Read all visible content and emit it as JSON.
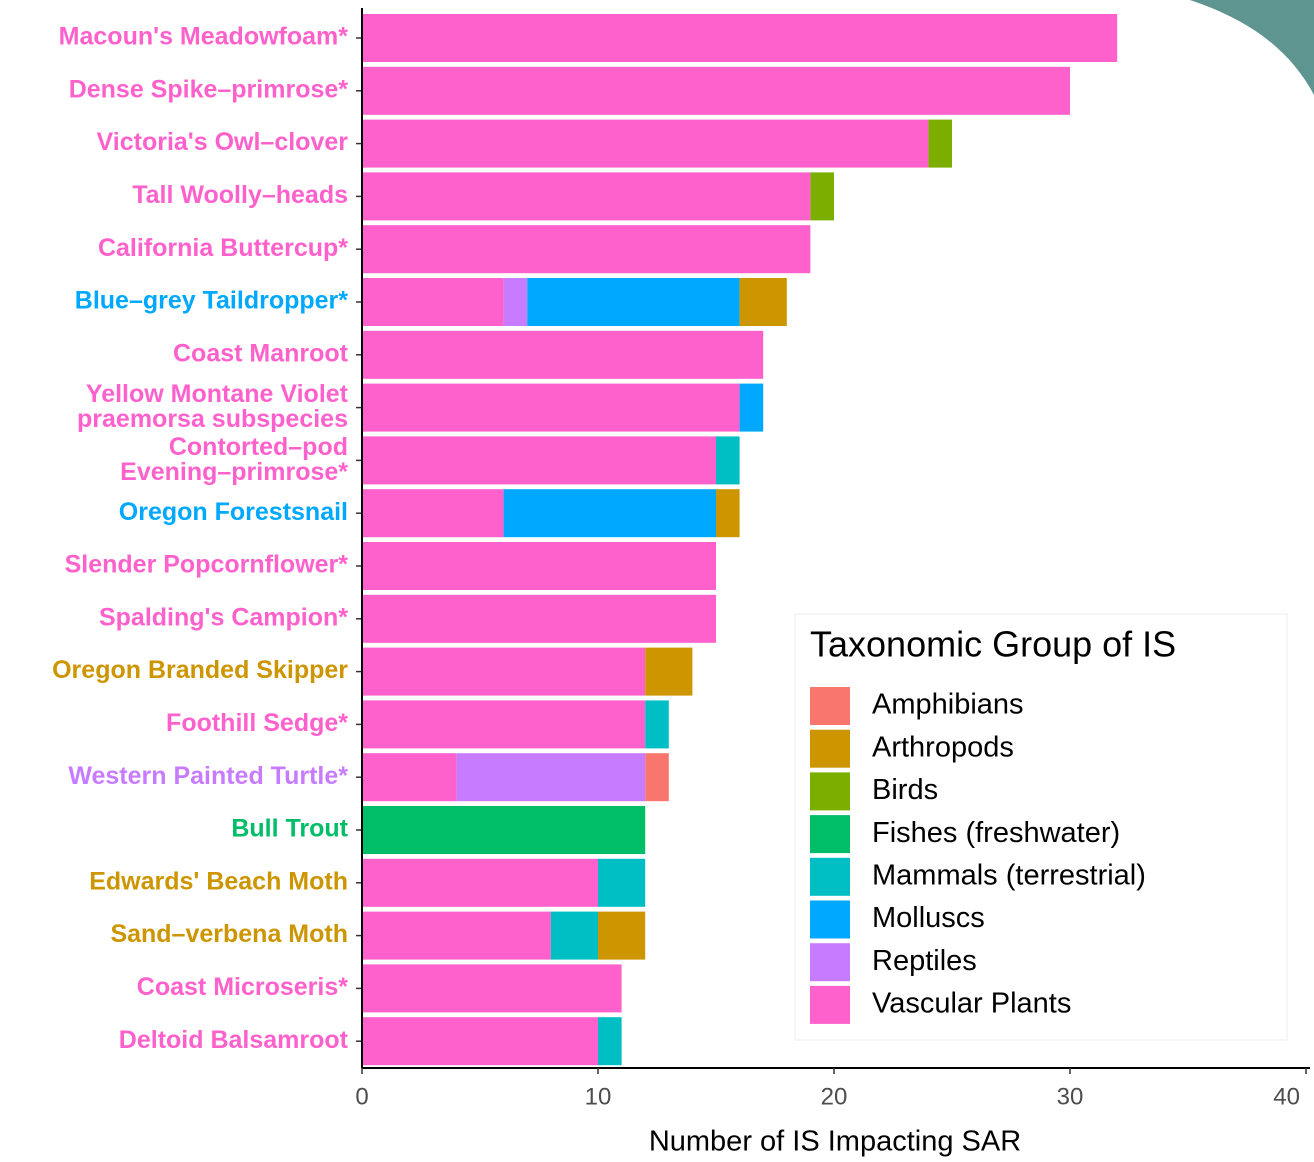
{
  "chart_data": {
    "type": "stacked-bar-horizontal",
    "x_label": "Number of IS Impacting SAR",
    "legend_title": "Taxonomic Group of IS",
    "legend_position": "bottom-right",
    "grid": false,
    "categories": [
      "Macoun's Meadowfoam*",
      "Dense Spike–primrose*",
      "Victoria's Owl–clover",
      "Tall Woolly–heads",
      "California Buttercup*",
      "Blue–grey Taildropper*",
      "Coast Manroot",
      "Yellow Montane Violet\npraemorsa subspecies",
      "Contorted–pod\nEvening–primrose*",
      "Oregon Forestsnail",
      "Slender Popcornflower*",
      "Spalding's Campion*",
      "Oregon Branded Skipper",
      "Foothill Sedge*",
      "Western Painted Turtle*",
      "Bull Trout",
      "Edwards' Beach Moth",
      "Sand–verbena Moth",
      "Coast Microseris*",
      "Deltoid Balsamroot"
    ],
    "category_colors": [
      "#FF61CC",
      "#FF61CC",
      "#FF61CC",
      "#FF61CC",
      "#FF61CC",
      "#00A9FF",
      "#FF61CC",
      "#FF61CC",
      "#FF61CC",
      "#00A9FF",
      "#FF61CC",
      "#FF61CC",
      "#CD9600",
      "#FF61CC",
      "#C77CFF",
      "#00BE67",
      "#CD9600",
      "#CD9600",
      "#FF61CC",
      "#FF61CC"
    ],
    "series": [
      {
        "name": "Amphibians",
        "color": "#F8766D",
        "values": [
          null,
          null,
          null,
          null,
          null,
          null,
          null,
          null,
          null,
          null,
          null,
          null,
          null,
          null,
          1,
          null,
          null,
          null,
          null,
          null
        ]
      },
      {
        "name": "Arthropods",
        "color": "#CD9600",
        "values": [
          null,
          null,
          null,
          null,
          null,
          2,
          null,
          null,
          null,
          1,
          null,
          null,
          2,
          null,
          null,
          null,
          null,
          2,
          null,
          null
        ]
      },
      {
        "name": "Birds",
        "color": "#7CAE00",
        "values": [
          null,
          null,
          1,
          1,
          null,
          null,
          null,
          null,
          null,
          null,
          null,
          null,
          null,
          null,
          null,
          null,
          null,
          null,
          null,
          null
        ]
      },
      {
        "name": "Fishes (freshwater)",
        "color": "#00BE67",
        "values": [
          null,
          null,
          null,
          null,
          null,
          null,
          null,
          null,
          null,
          null,
          null,
          null,
          null,
          null,
          null,
          12,
          null,
          null,
          null,
          null
        ]
      },
      {
        "name": "Mammals (terrestrial)",
        "color": "#00BFC4",
        "values": [
          null,
          null,
          null,
          null,
          null,
          null,
          null,
          null,
          1,
          null,
          null,
          null,
          null,
          1,
          null,
          null,
          2,
          2,
          null,
          1
        ]
      },
      {
        "name": "Molluscs",
        "color": "#00A9FF",
        "values": [
          null,
          null,
          null,
          null,
          null,
          9,
          null,
          1,
          null,
          9,
          null,
          null,
          null,
          null,
          null,
          null,
          null,
          null,
          null,
          null
        ]
      },
      {
        "name": "Reptiles",
        "color": "#C77CFF",
        "values": [
          null,
          null,
          null,
          null,
          null,
          1,
          null,
          null,
          null,
          null,
          null,
          null,
          null,
          null,
          8,
          null,
          null,
          null,
          null,
          null
        ]
      },
      {
        "name": "Vascular Plants",
        "color": "#FF61CC",
        "values": [
          32,
          30,
          24,
          19,
          19,
          6,
          17,
          16,
          15,
          6,
          15,
          15,
          12,
          12,
          4,
          null,
          10,
          8,
          11,
          10
        ]
      }
    ],
    "xlim": [
      0,
      40
    ],
    "xticks": [
      0,
      10,
      20,
      30,
      40
    ]
  }
}
